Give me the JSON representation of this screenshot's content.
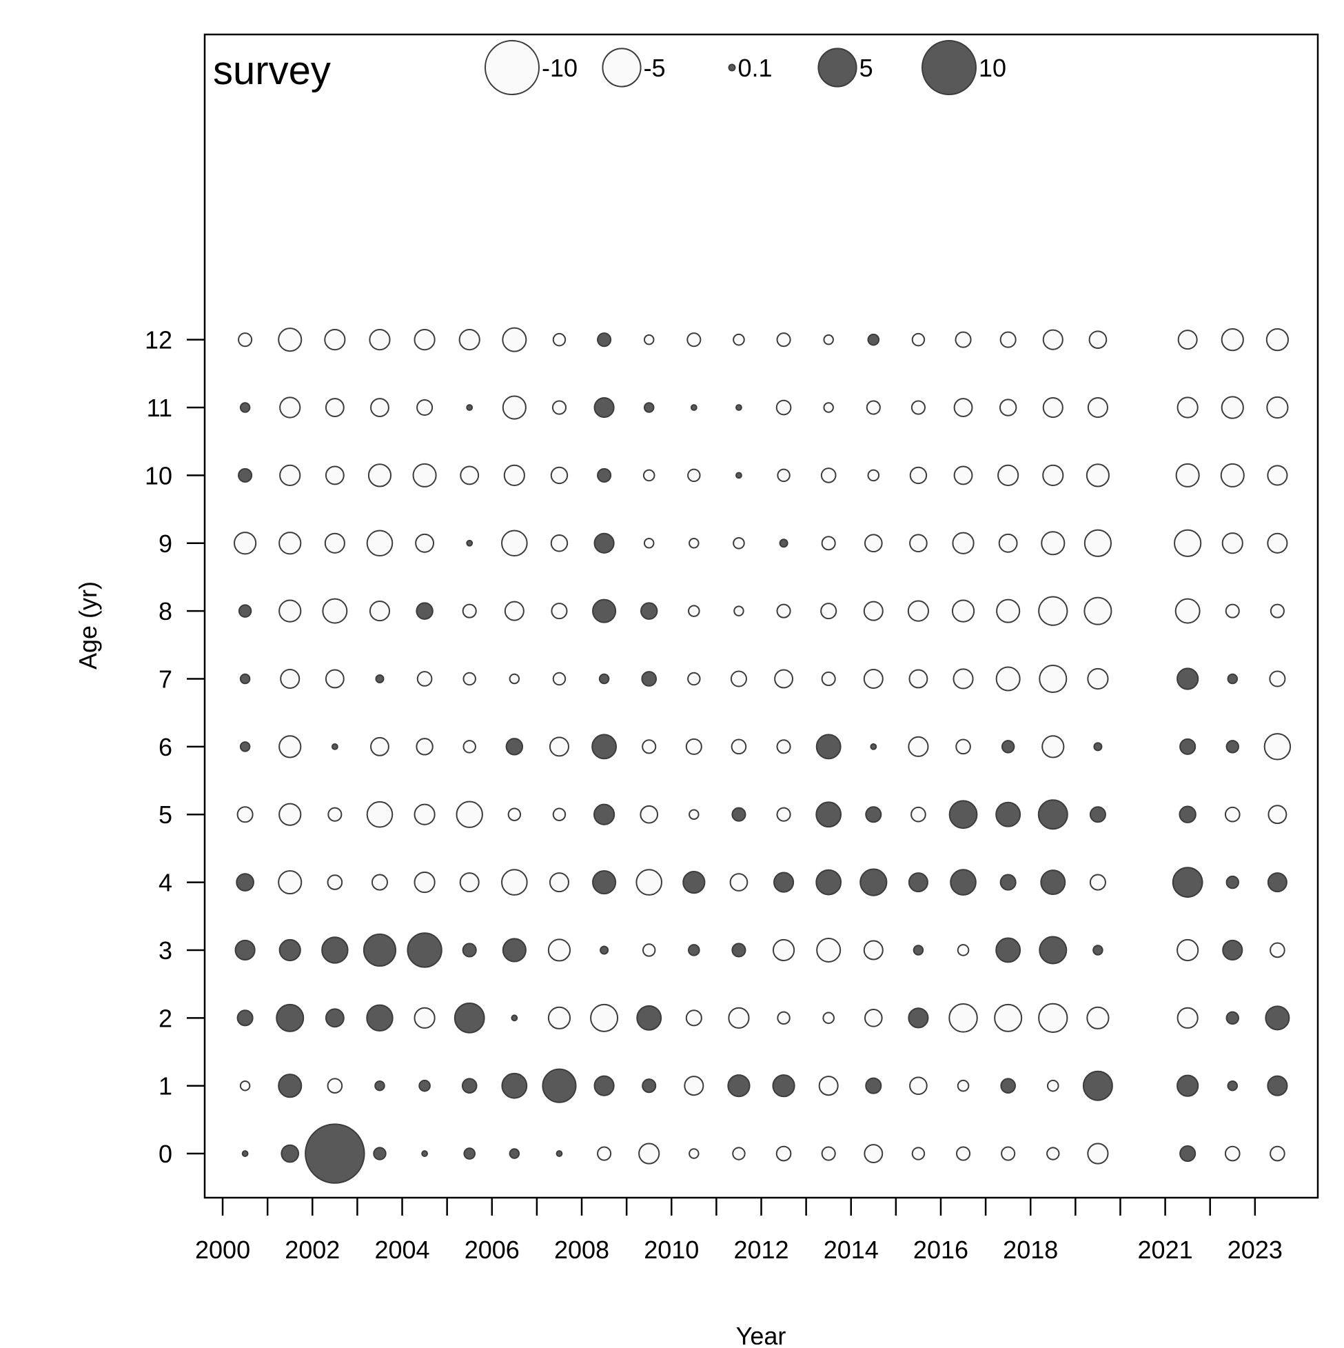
{
  "chart_data": {
    "type": "bubble",
    "title": "survey",
    "xlabel": "Year",
    "ylabel": "Age (yr)",
    "xlim": [
      1999.6,
      2024.4
    ],
    "ylim": [
      -0.65,
      16.5
    ],
    "x_ticks": [
      2000,
      2001,
      2002,
      2003,
      2004,
      2005,
      2006,
      2007,
      2008,
      2009,
      2010,
      2011,
      2012,
      2013,
      2014,
      2015,
      2016,
      2017,
      2018,
      2019,
      2020,
      2021,
      2022,
      2023
    ],
    "x_tick_labels": [
      "2000",
      "2002",
      "2004",
      "2006",
      "2008",
      "2010",
      "2012",
      "2014",
      "2016",
      "2018",
      "2021",
      "2023"
    ],
    "y_ticks": [
      0,
      1,
      2,
      3,
      4,
      5,
      6,
      7,
      8,
      9,
      10,
      11,
      12
    ],
    "y_tick_labels": [
      "0",
      "1",
      "2",
      "3",
      "4",
      "5",
      "6",
      "7",
      "8",
      "9",
      "10",
      "11",
      "12"
    ],
    "legend": {
      "position": "top",
      "entries": [
        {
          "label": "-10",
          "value": -10
        },
        {
          "label": "-5",
          "value": -5
        },
        {
          "label": "0.1",
          "value": 0.1
        },
        {
          "label": "5",
          "value": 5
        },
        {
          "label": "10",
          "value": 10
        }
      ]
    },
    "colors": {
      "positive_fill": "#595959",
      "negative_fill": "#fafafa",
      "stroke": "#3c3c3c"
    },
    "years": [
      2000,
      2001,
      2002,
      2003,
      2004,
      2005,
      2006,
      2007,
      2008,
      2009,
      2010,
      2011,
      2012,
      2013,
      2014,
      2015,
      2016,
      2017,
      2018,
      2019,
      2021,
      2022,
      2023
    ],
    "ages": [
      0,
      1,
      2,
      3,
      4,
      5,
      6,
      7,
      8,
      9,
      10,
      11,
      12
    ],
    "residuals": [
      [
        0.1,
        -0.3,
        0.8,
        1.3,
        1.0,
        -0.8,
        0.3,
        0.3,
        0.5,
        -1.6,
        0.6,
        0.3,
        -0.6
      ],
      [
        1.0,
        1.8,
        2.5,
        1.5,
        -1.8,
        -1.6,
        -1.6,
        -1.2,
        -1.6,
        -1.6,
        -1.4,
        -1.4,
        -1.8
      ],
      [
        12.0,
        -0.7,
        1.1,
        2.3,
        -0.7,
        -0.6,
        0.1,
        -1.1,
        -2.0,
        -1.3,
        -1.1,
        -1.1,
        -1.4
      ],
      [
        0.5,
        0.3,
        2.3,
        3.5,
        -0.8,
        -2.2,
        -1.1,
        0.2,
        -1.3,
        -2.2,
        -1.7,
        -1.1,
        -1.4
      ],
      [
        0.1,
        0.4,
        -1.4,
        4.0,
        -1.4,
        -1.4,
        -0.9,
        -0.7,
        0.9,
        -1.1,
        -1.8,
        -0.8,
        -1.4
      ],
      [
        0.4,
        0.7,
        3.0,
        0.6,
        -1.2,
        -2.3,
        -0.5,
        -0.5,
        -0.6,
        0.1,
        -1.1,
        0.1,
        -1.4
      ],
      [
        0.3,
        2.1,
        0.1,
        1.8,
        -2.2,
        -0.5,
        0.9,
        -0.3,
        -1.2,
        -2.2,
        -1.4,
        -1.8,
        -1.9
      ],
      [
        0.1,
        3.8,
        -1.6,
        -1.6,
        -1.2,
        -0.5,
        -1.2,
        -0.5,
        -0.8,
        -0.9,
        -0.9,
        -0.6,
        -0.5
      ],
      [
        -0.6,
        1.3,
        -2.5,
        0.2,
        1.8,
        1.4,
        2.0,
        0.3,
        1.8,
        1.3,
        0.6,
        1.3,
        0.6
      ],
      [
        -1.4,
        0.6,
        2.0,
        -0.5,
        -2.2,
        -1.0,
        -0.6,
        0.7,
        0.9,
        -0.3,
        -0.4,
        0.3,
        -0.3
      ],
      [
        -0.3,
        -1.2,
        -0.8,
        0.4,
        1.6,
        -0.3,
        -0.8,
        -0.5,
        -0.4,
        -0.3,
        -0.5,
        0.1,
        -0.6
      ],
      [
        -0.5,
        1.6,
        -1.4,
        0.6,
        -1.0,
        0.6,
        -0.7,
        -0.8,
        -0.3,
        -0.4,
        0.1,
        0.1,
        -0.4
      ],
      [
        -0.7,
        1.6,
        -0.5,
        -1.5,
        1.3,
        -0.6,
        -0.6,
        -1.1,
        -0.6,
        0.2,
        -0.5,
        -0.7,
        -0.6
      ],
      [
        -0.6,
        -1.2,
        -0.4,
        -1.9,
        2.1,
        2.1,
        2.0,
        -0.6,
        -0.8,
        -0.6,
        -0.7,
        -0.3,
        -0.3
      ],
      [
        -1.1,
        0.8,
        -1.0,
        -1.2,
        2.4,
        0.8,
        0.1,
        -1.2,
        -1.2,
        -1.0,
        -0.4,
        -0.6,
        0.4
      ],
      [
        -0.5,
        -1.0,
        1.3,
        0.3,
        1.2,
        -0.7,
        -1.3,
        -1.1,
        -1.4,
        -1.0,
        -0.9,
        -0.6,
        -0.5
      ],
      [
        -0.6,
        -0.4,
        -2.7,
        -0.4,
        2.2,
        2.6,
        -0.7,
        -1.3,
        -1.6,
        -1.5,
        -1.1,
        -1.1,
        -0.8
      ],
      [
        -0.6,
        0.7,
        -2.5,
        2.0,
        0.8,
        2.0,
        0.5,
        -1.9,
        -1.8,
        -1.1,
        -1.4,
        -0.9,
        -0.8
      ],
      [
        -0.5,
        -0.4,
        -2.8,
        2.5,
        2.0,
        2.9,
        -1.6,
        -2.5,
        -2.8,
        -1.8,
        -1.4,
        -1.3,
        -1.3
      ],
      [
        -1.4,
        2.9,
        -1.6,
        0.3,
        -0.8,
        0.8,
        0.2,
        -1.4,
        -2.5,
        -2.4,
        -1.7,
        -1.3,
        -1.0
      ],
      [
        0.8,
        1.5,
        -1.4,
        -1.5,
        3.0,
        0.9,
        0.8,
        1.5,
        -2.0,
        -2.4,
        -1.8,
        -1.4,
        -1.2
      ],
      [
        -0.7,
        0.3,
        0.5,
        1.3,
        0.5,
        -0.7,
        0.5,
        0.3,
        -0.6,
        -1.4,
        -1.8,
        -1.6,
        -1.6
      ],
      [
        -0.7,
        1.3,
        1.9,
        -0.7,
        1.2,
        -1.1,
        -2.3,
        -0.8,
        -0.6,
        -1.3,
        -1.3,
        -1.5,
        -1.6
      ]
    ]
  }
}
